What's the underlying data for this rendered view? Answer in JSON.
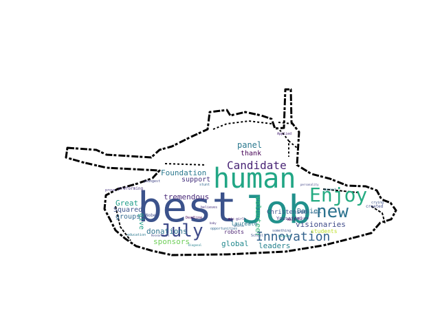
{
  "words": [
    {
      "id": "best",
      "text": "best",
      "color": "#3b528b"
    },
    {
      "id": "job",
      "text": "Job",
      "color": "#21918c"
    },
    {
      "id": "human",
      "text": "human",
      "color": "#21a685"
    },
    {
      "id": "enjoy",
      "text": "Enjoy",
      "color": "#25ab82"
    },
    {
      "id": "new",
      "text": "new",
      "color": "#2c728e"
    },
    {
      "id": "july",
      "text": "July",
      "color": "#3e4a89"
    },
    {
      "id": "innovation",
      "text": "Innovation",
      "color": "#33628d"
    },
    {
      "id": "candidate",
      "text": "Candidate",
      "color": "#482475"
    },
    {
      "id": "panel",
      "text": "panel",
      "color": "#2a788e"
    },
    {
      "id": "thank",
      "text": "thank",
      "color": "#440154"
    },
    {
      "id": "support",
      "text": "support",
      "color": "#46327e"
    },
    {
      "id": "foundation",
      "text": "Foundation",
      "color": "#2a788e"
    },
    {
      "id": "tremendous",
      "text": "tremendous",
      "color": "#482878"
    },
    {
      "id": "great",
      "text": "Great",
      "color": "#1f9e89"
    },
    {
      "id": "squared",
      "text": "Squared",
      "color": "#3b528b"
    },
    {
      "id": "groups",
      "text": "groups",
      "color": "#31688e"
    },
    {
      "id": "donations",
      "text": "donations",
      "color": "#2c728e"
    },
    {
      "id": "sponsors",
      "text": "sponsors",
      "color": "#6ece58"
    },
    {
      "id": "global",
      "text": "global",
      "color": "#23898e"
    },
    {
      "id": "leaders",
      "text": "leaders",
      "color": "#26828e"
    },
    {
      "id": "visionaries",
      "text": "visionaries",
      "color": "#3e4a89"
    },
    {
      "id": "volunteer",
      "text": "volunteer",
      "color": "#35b779"
    },
    {
      "id": "christensen",
      "text": "Christensen",
      "color": "#3b528b"
    },
    {
      "id": "daniel",
      "text": "Daniel",
      "color": "#2d708e"
    },
    {
      "id": "students",
      "text": "students",
      "color": "#bddf26"
    },
    {
      "id": "give",
      "text": "give",
      "color": "#1fa088"
    },
    {
      "id": "robots",
      "text": "robots",
      "color": "#481f70"
    },
    {
      "id": "laureate",
      "text": "laureate",
      "color": "#2a788e"
    },
    {
      "id": "yousafzai",
      "text": "Yousafzai",
      "color": "#443983"
    },
    {
      "id": "nobel",
      "text": "Nobel",
      "color": "#3e4a89"
    },
    {
      "id": "believes",
      "text": "believes",
      "color": "#46327e"
    },
    {
      "id": "deadline",
      "text": "Deadline",
      "color": "#440154"
    },
    {
      "id": "opportunities",
      "text": "opportunities",
      "color": "#31688e"
    },
    {
      "id": "something",
      "text": "something",
      "color": "#3b528b"
    },
    {
      "id": "beyond",
      "text": "beyond",
      "color": "#21918c"
    },
    {
      "id": "failure",
      "text": "failure",
      "color": "#472d7b"
    },
    {
      "id": "created",
      "text": "created",
      "color": "#3e4a89"
    },
    {
      "id": "preforming",
      "text": "preforming",
      "color": "#46327e"
    },
    {
      "id": "youngest",
      "text": "youngest",
      "color": "#414487"
    },
    {
      "id": "applied",
      "text": "Applied",
      "color": "#482475"
    },
    {
      "id": "stunt",
      "text": "stunt",
      "color": "#31688e"
    },
    {
      "id": "school",
      "text": "School",
      "color": "#3b528b"
    },
    {
      "id": "education",
      "text": "education",
      "color": "#2a788e"
    },
    {
      "id": "prove",
      "text": "prove",
      "color": "#46327e"
    },
    {
      "id": "wall",
      "text": "Wall",
      "color": "#440154"
    },
    {
      "id": "personality",
      "text": "personality",
      "color": "#414487"
    },
    {
      "id": "girls",
      "text": "girls",
      "color": "#472d7b"
    },
    {
      "id": "white",
      "text": "white",
      "color": "#31688e"
    },
    {
      "id": "researchers",
      "text": "Researchers",
      "color": "#3e4a89"
    },
    {
      "id": "diagonal",
      "text": "Diagonal",
      "color": "#26828e"
    },
    {
      "id": "crying",
      "text": "crying",
      "color": "#3b528b"
    },
    {
      "id": "study",
      "text": "study",
      "color": "#31688e"
    },
    {
      "id": "approach",
      "text": "approach",
      "color": "#2a788e"
    },
    {
      "id": "mic",
      "text": "mic",
      "color": "#440154"
    },
    {
      "id": "baby",
      "text": "baby",
      "color": "#46327e"
    }
  ]
}
